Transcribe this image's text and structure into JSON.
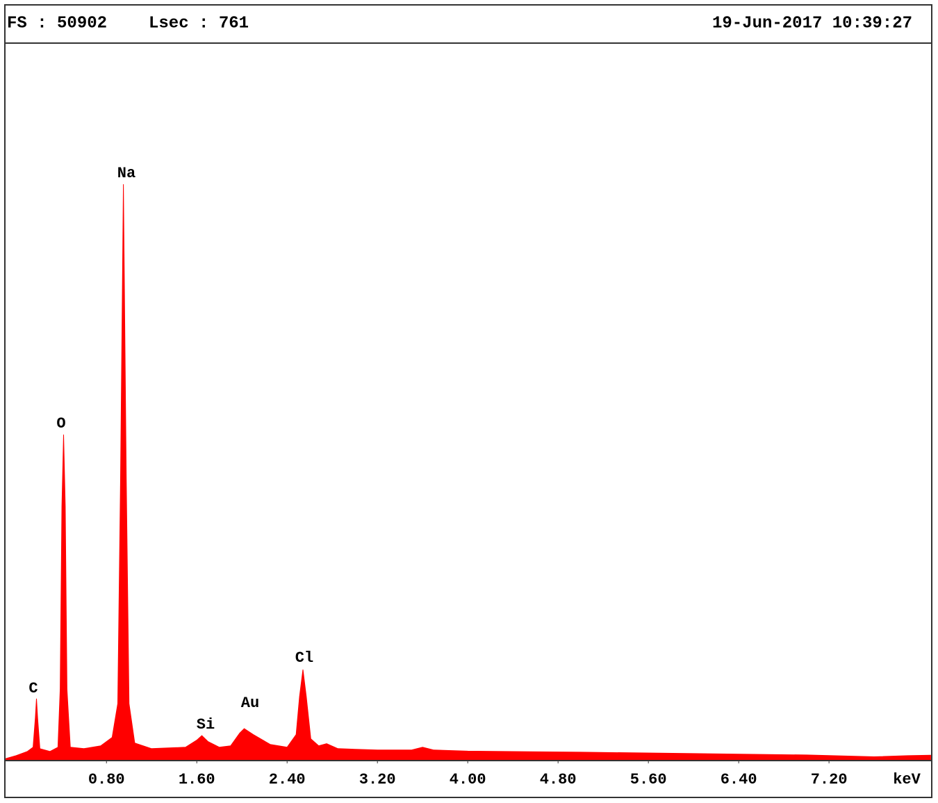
{
  "chart_data": {
    "type": "area",
    "header": {
      "fs": "FS : 50902",
      "lsec": "Lsec : 761",
      "timestamp": "19-Jun-2017 10:39:27"
    },
    "x_unit": "keV",
    "color": "#ff0000",
    "annotations": [
      "C",
      "O",
      "Na",
      "Si",
      "Au",
      "Cl"
    ],
    "xlim": [
      -0.1,
      8.11
    ],
    "ylim": [
      0,
      50902
    ],
    "xticks": [
      {
        "value": 0.8,
        "label": "0.80"
      },
      {
        "value": 1.6,
        "label": "1.60"
      },
      {
        "value": 2.4,
        "label": "2.40"
      },
      {
        "value": 3.2,
        "label": "3.20"
      },
      {
        "value": 4.0,
        "label": "4.00"
      },
      {
        "value": 4.8,
        "label": "4.80"
      },
      {
        "value": 5.6,
        "label": "5.60"
      },
      {
        "value": 6.4,
        "label": "6.40"
      },
      {
        "value": 7.2,
        "label": "7.20"
      }
    ],
    "x": [
      -0.09,
      0.0,
      0.1,
      0.15,
      0.17,
      0.18,
      0.19,
      0.21,
      0.3,
      0.37,
      0.39,
      0.405,
      0.42,
      0.435,
      0.45,
      0.48,
      0.6,
      0.75,
      0.85,
      0.9,
      0.925,
      0.95,
      0.975,
      1.0,
      1.05,
      1.2,
      1.5,
      1.6,
      1.645,
      1.7,
      1.8,
      1.9,
      1.98,
      2.02,
      2.1,
      2.25,
      2.4,
      2.48,
      2.51,
      2.54,
      2.57,
      2.61,
      2.68,
      2.75,
      2.85,
      3.2,
      3.5,
      3.6,
      3.7,
      4.0,
      5.0,
      6.0,
      7.0,
      7.6,
      7.9,
      8.1
    ],
    "values": [
      100,
      300,
      600,
      900,
      3000,
      4350,
      3000,
      800,
      600,
      900,
      5000,
      18000,
      23100,
      18000,
      5000,
      900,
      800,
      1000,
      1600,
      4000,
      20000,
      40880,
      20000,
      4000,
      1200,
      800,
      900,
      1400,
      1730,
      1300,
      900,
      1000,
      1900,
      2220,
      1800,
      1100,
      900,
      1800,
      4500,
      6420,
      4500,
      1500,
      1000,
      1150,
      800,
      700,
      700,
      900,
      700,
      620,
      550,
      450,
      350,
      220,
      300,
      330
    ]
  }
}
